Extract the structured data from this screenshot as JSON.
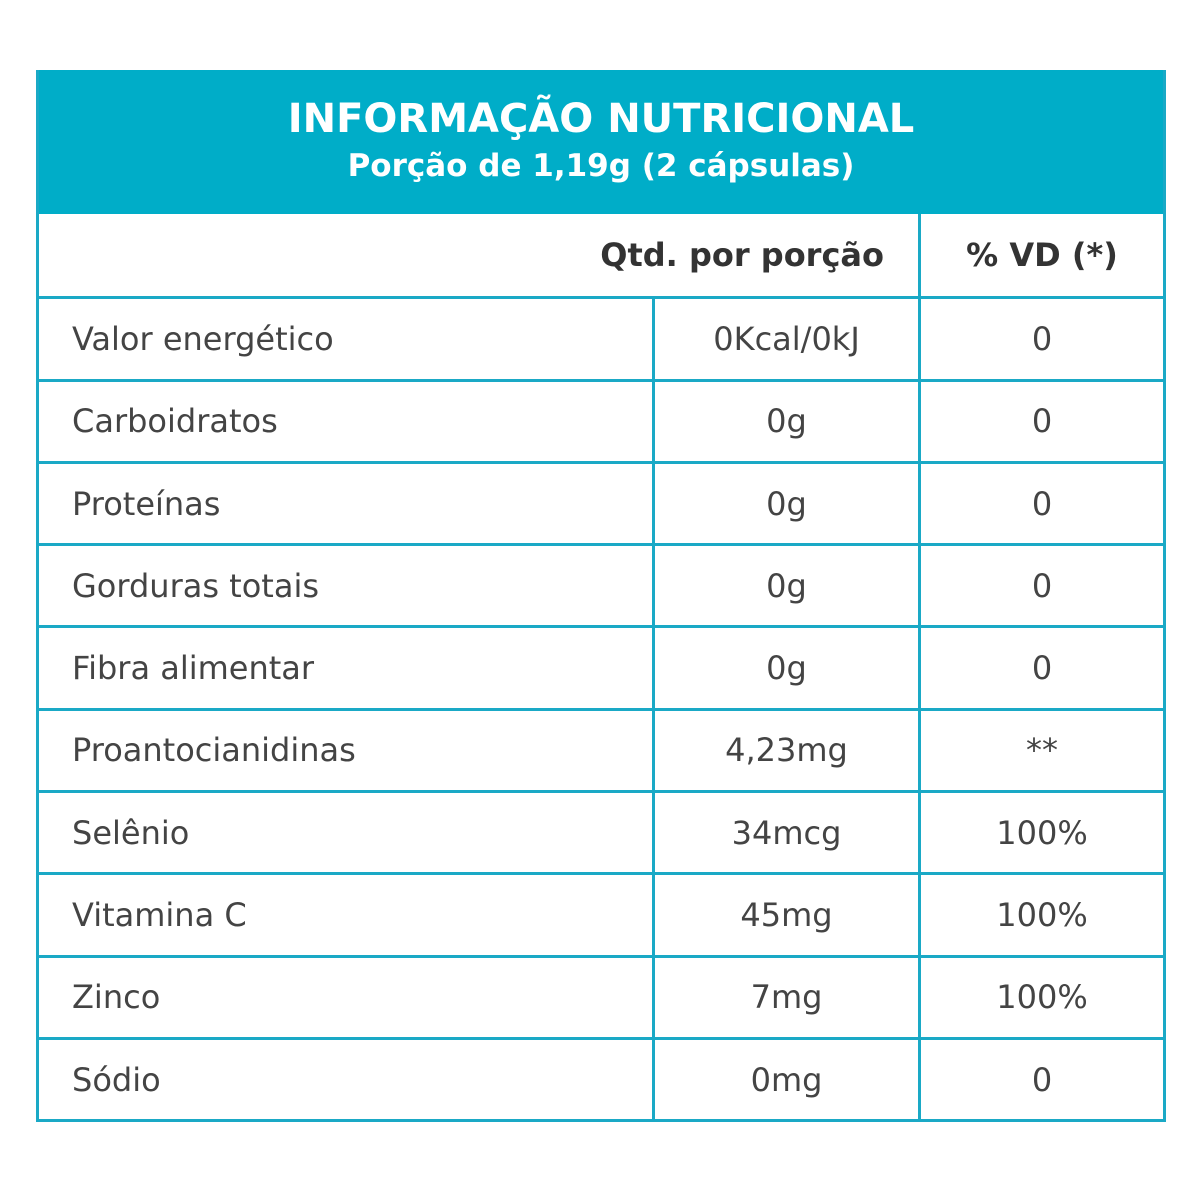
{
  "header": {
    "title": "INFORMAÇÃO NUTRICIONAL",
    "subtitle": "Porção de 1,19g (2 cápsulas)"
  },
  "columns": {
    "qty": "Qtd. por porção",
    "vd": "% VD (*)"
  },
  "rows": [
    {
      "name": "Valor energético",
      "qty": "0Kcal/0kJ",
      "vd": "0"
    },
    {
      "name": "Carboidratos",
      "qty": "0g",
      "vd": "0"
    },
    {
      "name": "Proteínas",
      "qty": "0g",
      "vd": "0"
    },
    {
      "name": "Gorduras totais",
      "qty": "0g",
      "vd": "0"
    },
    {
      "name": "Fibra alimentar",
      "qty": "0g",
      "vd": "0"
    },
    {
      "name": "Proantocianidinas",
      "qty": "4,23mg",
      "vd": "**"
    },
    {
      "name": "Selênio",
      "qty": "34mcg",
      "vd": "100%"
    },
    {
      "name": "Vitamina C",
      "qty": "45mg",
      "vd": "100%"
    },
    {
      "name": "Zinco",
      "qty": "7mg",
      "vd": "100%"
    },
    {
      "name": "Sódio",
      "qty": "0mg",
      "vd": "0"
    }
  ],
  "colors": {
    "accent": "#00adc8",
    "border": "#1aa9c6",
    "text": "#444444"
  }
}
